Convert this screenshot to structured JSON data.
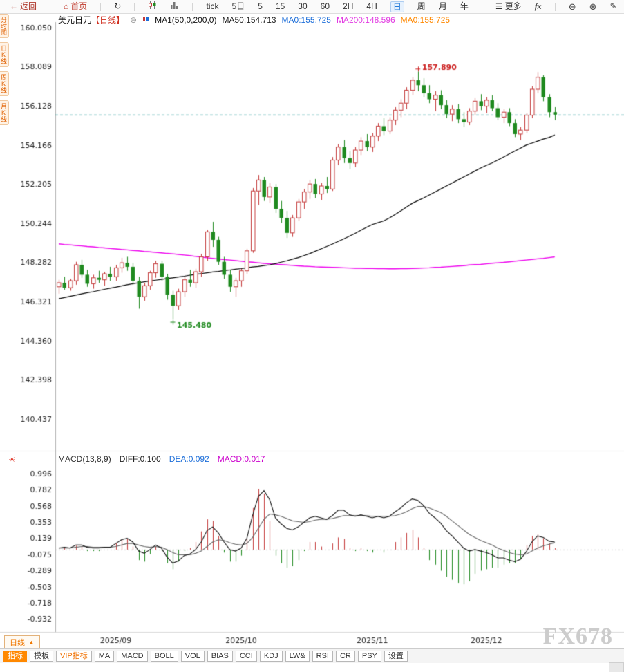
{
  "icons": {
    "back": "←",
    "home": "⌂",
    "refresh": "↻",
    "more": "☰",
    "zoom_out": "⊖",
    "zoom_in": "⊕",
    "draw": "✎",
    "collapse": "⊖",
    "indicator_settings": "☀",
    "triangle_up": "▲"
  },
  "toolbar": {
    "back_label": "返回",
    "home_label": "首页",
    "periods": [
      "tick",
      "5日",
      "5",
      "15",
      "30",
      "60",
      "2H",
      "4H",
      "日",
      "周",
      "月",
      "年"
    ],
    "active_period": "日",
    "more_label": "更多",
    "fx_label": "fx"
  },
  "left_rail": {
    "items": [
      "分时图",
      "日K线",
      "周K线",
      "月K线"
    ]
  },
  "chart_header": {
    "symbol": "美元日元",
    "period_tag": "【日线】",
    "ma_config": "MA1(50,0,200,0)",
    "ma_values": [
      {
        "label": "MA50:154.713",
        "color": "#222222"
      },
      {
        "label": "MA0:155.725",
        "color": "#1e6fd9"
      },
      {
        "label": "MA200:148.596",
        "color": "#e23ae2"
      },
      {
        "label": "MA0:155.725",
        "color": "#ff8800"
      }
    ]
  },
  "macd_header": {
    "label": "MACD(13,8,9)",
    "diff": {
      "label": "DIFF:0.100",
      "color": "#222222"
    },
    "dea": {
      "label": "DEA:0.092",
      "color": "#1e6fd9"
    },
    "macd": {
      "label": "MACD:0.017",
      "color": "#cc00cc"
    }
  },
  "bottom": {
    "period_label": "日线",
    "tabs": [
      "指标",
      "模板",
      "VIP指标",
      "MA",
      "MACD",
      "BOLL",
      "VOL",
      "BIAS",
      "CCI",
      "KDJ",
      "LW&",
      "RSI",
      "CR",
      "PSY",
      "设置"
    ],
    "active_tab": "指标"
  },
  "watermark": "FX678",
  "chart_data": [
    {
      "type": "candlestick",
      "symbol": "美元日元",
      "period": "日线",
      "y_ticks": [
        160.05,
        158.089,
        156.128,
        154.166,
        152.205,
        150.244,
        148.282,
        146.321,
        144.36,
        142.398,
        140.437
      ],
      "x_tick_labels": [
        {
          "label": "2025/09",
          "index": 10
        },
        {
          "label": "2025/10",
          "index": 32
        },
        {
          "label": "2025/11",
          "index": 55
        },
        {
          "label": "2025/12",
          "index": 75
        }
      ],
      "current_price": 155.725,
      "current_price_color": "#2f9e9e",
      "high_annotation": {
        "text": "157.890",
        "index": 63,
        "price": 157.89,
        "color": "#cc2222"
      },
      "low_annotation": {
        "text": "145.480",
        "index": 20,
        "price": 145.48,
        "color": "#1f8a1f"
      },
      "up_color": "#c43a3a",
      "down_color": "#1f8a1f",
      "ma50_color": "#000000",
      "ma200_color": "#ee00ee",
      "candles": [
        [
          147.1,
          147.45,
          146.75,
          147.3
        ],
        [
          147.3,
          147.6,
          146.95,
          147.05
        ],
        [
          147.05,
          147.5,
          146.9,
          147.4
        ],
        [
          147.4,
          148.35,
          147.2,
          148.2
        ],
        [
          148.2,
          148.45,
          147.55,
          147.7
        ],
        [
          147.7,
          147.95,
          147.1,
          147.25
        ],
        [
          147.25,
          147.7,
          147.0,
          147.55
        ],
        [
          147.55,
          147.9,
          147.3,
          147.45
        ],
        [
          147.45,
          147.85,
          147.15,
          147.75
        ],
        [
          147.75,
          148.1,
          147.4,
          147.6
        ],
        [
          147.6,
          148.2,
          147.4,
          148.05
        ],
        [
          148.05,
          148.55,
          147.8,
          148.3
        ],
        [
          148.3,
          148.6,
          147.9,
          148.1
        ],
        [
          148.1,
          148.3,
          147.2,
          147.4
        ],
        [
          147.4,
          147.6,
          146.0,
          146.6
        ],
        [
          146.6,
          147.3,
          146.4,
          147.15
        ],
        [
          147.15,
          147.9,
          146.95,
          147.8
        ],
        [
          147.8,
          148.4,
          147.55,
          148.25
        ],
        [
          148.25,
          148.4,
          147.4,
          147.6
        ],
        [
          147.6,
          147.75,
          146.45,
          146.7
        ],
        [
          146.7,
          146.9,
          145.48,
          146.15
        ],
        [
          146.15,
          147.0,
          145.95,
          146.85
        ],
        [
          146.85,
          147.6,
          146.6,
          147.45
        ],
        [
          147.45,
          147.95,
          147.1,
          147.3
        ],
        [
          147.3,
          148.0,
          147.05,
          147.85
        ],
        [
          147.85,
          148.75,
          147.6,
          148.6
        ],
        [
          148.6,
          149.95,
          148.4,
          149.85
        ],
        [
          149.85,
          150.35,
          149.1,
          149.45
        ],
        [
          149.45,
          149.6,
          148.2,
          148.35
        ],
        [
          148.35,
          148.6,
          147.5,
          147.7
        ],
        [
          147.7,
          147.95,
          146.85,
          147.1
        ],
        [
          147.1,
          147.55,
          146.6,
          147.4
        ],
        [
          147.4,
          148.0,
          147.1,
          147.9
        ],
        [
          147.9,
          149.0,
          147.75,
          148.9
        ],
        [
          148.9,
          152.05,
          148.8,
          151.9
        ],
        [
          151.9,
          152.7,
          151.2,
          152.45
        ],
        [
          152.45,
          152.6,
          151.4,
          151.6
        ],
        [
          151.6,
          152.3,
          151.3,
          152.1
        ],
        [
          152.1,
          152.25,
          150.8,
          151.0
        ],
        [
          151.0,
          151.4,
          150.3,
          150.55
        ],
        [
          150.55,
          150.9,
          149.55,
          149.8
        ],
        [
          149.8,
          150.7,
          149.6,
          150.55
        ],
        [
          150.55,
          151.5,
          150.4,
          151.35
        ],
        [
          151.35,
          152.0,
          151.0,
          151.85
        ],
        [
          151.85,
          152.45,
          151.5,
          152.25
        ],
        [
          152.25,
          152.5,
          151.55,
          151.75
        ],
        [
          151.75,
          152.3,
          151.45,
          152.15
        ],
        [
          152.15,
          152.6,
          151.8,
          152.0
        ],
        [
          152.0,
          153.6,
          151.9,
          153.45
        ],
        [
          153.45,
          154.25,
          153.2,
          154.1
        ],
        [
          154.1,
          154.45,
          153.3,
          153.55
        ],
        [
          153.55,
          153.9,
          153.0,
          153.3
        ],
        [
          153.3,
          154.1,
          153.1,
          153.95
        ],
        [
          153.95,
          154.6,
          153.7,
          154.4
        ],
        [
          154.4,
          154.75,
          153.9,
          154.1
        ],
        [
          154.1,
          154.8,
          153.85,
          154.65
        ],
        [
          154.65,
          155.3,
          154.4,
          155.15
        ],
        [
          155.15,
          155.55,
          154.7,
          154.9
        ],
        [
          154.9,
          155.6,
          154.75,
          155.45
        ],
        [
          155.45,
          156.1,
          155.2,
          155.95
        ],
        [
          155.95,
          156.5,
          155.6,
          156.3
        ],
        [
          156.3,
          157.1,
          156.0,
          156.95
        ],
        [
          156.95,
          157.6,
          156.7,
          157.45
        ],
        [
          157.45,
          157.89,
          156.9,
          157.2
        ],
        [
          157.2,
          157.55,
          156.6,
          156.8
        ],
        [
          156.8,
          157.2,
          156.3,
          156.5
        ],
        [
          156.5,
          156.9,
          155.9,
          156.7
        ],
        [
          156.7,
          156.95,
          156.0,
          156.2
        ],
        [
          156.2,
          156.45,
          155.55,
          155.75
        ],
        [
          155.75,
          156.2,
          155.4,
          156.0
        ],
        [
          156.0,
          156.25,
          155.3,
          155.5
        ],
        [
          155.5,
          155.85,
          155.1,
          155.35
        ],
        [
          155.35,
          156.05,
          155.2,
          155.9
        ],
        [
          155.9,
          156.55,
          155.7,
          156.4
        ],
        [
          156.4,
          156.75,
          155.95,
          156.15
        ],
        [
          156.15,
          156.6,
          155.8,
          156.45
        ],
        [
          156.45,
          156.7,
          155.9,
          156.05
        ],
        [
          156.05,
          156.3,
          155.45,
          155.6
        ],
        [
          155.6,
          156.0,
          155.3,
          155.85
        ],
        [
          155.85,
          156.05,
          155.15,
          155.3
        ],
        [
          155.3,
          155.5,
          154.6,
          154.75
        ],
        [
          154.75,
          155.1,
          154.45,
          154.95
        ],
        [
          154.95,
          155.8,
          154.8,
          155.7
        ],
        [
          155.7,
          157.15,
          155.55,
          157.0
        ],
        [
          157.0,
          157.86,
          156.8,
          157.6
        ],
        [
          157.6,
          157.7,
          156.4,
          156.6
        ],
        [
          156.6,
          156.75,
          155.6,
          155.85
        ],
        [
          155.85,
          156.1,
          155.45,
          155.73
        ]
      ],
      "ma50": [
        146.5,
        146.56,
        146.62,
        146.68,
        146.74,
        146.8,
        146.85,
        146.91,
        146.97,
        147.03,
        147.08,
        147.14,
        147.2,
        147.25,
        147.3,
        147.35,
        147.39,
        147.43,
        147.47,
        147.51,
        147.55,
        147.59,
        147.63,
        147.68,
        147.72,
        147.76,
        147.8,
        147.84,
        147.87,
        147.91,
        147.94,
        147.98,
        148.01,
        148.05,
        148.09,
        148.12,
        148.16,
        148.2,
        148.26,
        148.33,
        148.4,
        148.48,
        148.56,
        148.66,
        148.76,
        148.88,
        149.0,
        149.12,
        149.24,
        149.37,
        149.5,
        149.64,
        149.78,
        149.93,
        150.08,
        150.22,
        150.31,
        150.4,
        150.55,
        150.72,
        150.9,
        151.09,
        151.28,
        151.42,
        151.55,
        151.7,
        151.85,
        152.0,
        152.15,
        152.3,
        152.45,
        152.6,
        152.75,
        152.9,
        153.05,
        153.18,
        153.3,
        153.45,
        153.6,
        153.75,
        153.9,
        154.05,
        154.2,
        154.3,
        154.4,
        154.5,
        154.58,
        154.71
      ],
      "ma200": [
        149.25,
        149.22,
        149.2,
        149.17,
        149.15,
        149.12,
        149.1,
        149.07,
        149.05,
        149.02,
        149.0,
        148.97,
        148.95,
        148.92,
        148.9,
        148.87,
        148.85,
        148.82,
        148.8,
        148.77,
        148.75,
        148.72,
        148.69,
        148.66,
        148.62,
        148.59,
        148.55,
        148.52,
        148.49,
        148.46,
        148.44,
        148.41,
        148.38,
        148.35,
        148.33,
        148.3,
        148.27,
        148.25,
        148.23,
        148.21,
        148.19,
        148.17,
        148.15,
        148.13,
        148.12,
        148.1,
        148.09,
        148.08,
        148.07,
        148.06,
        148.05,
        148.04,
        148.03,
        148.03,
        148.02,
        148.02,
        148.01,
        148.01,
        148.0,
        148.0,
        148.01,
        148.01,
        148.02,
        148.03,
        148.04,
        148.05,
        148.07,
        148.08,
        148.1,
        148.12,
        148.14,
        148.16,
        148.19,
        148.21,
        148.22,
        148.25,
        148.28,
        148.3,
        148.32,
        148.35,
        148.38,
        148.41,
        148.44,
        148.47,
        148.5,
        148.52,
        148.56,
        148.6
      ]
    },
    {
      "type": "macd",
      "params": "MACD(13,8,9)",
      "diff_value": 0.1,
      "dea_value": 0.092,
      "macd_value": 0.017,
      "y_ticks": [
        0.996,
        0.782,
        0.568,
        0.353,
        0.139,
        -0.075,
        -0.289,
        -0.503,
        -0.718,
        -0.932
      ],
      "diff_color": "#111111",
      "dea_color": "#666666",
      "hist_up_color": "#c43a3a",
      "hist_down_color": "#1f8a1f",
      "zero_line_color": "#bbbbbb",
      "diff": [
        0.02,
        0.03,
        0.02,
        0.06,
        0.06,
        0.03,
        0.02,
        0.02,
        0.03,
        0.03,
        0.08,
        0.13,
        0.15,
        0.1,
        -0.02,
        -0.05,
        0.0,
        0.06,
        0.02,
        -0.1,
        -0.18,
        -0.15,
        -0.08,
        -0.06,
        0.0,
        0.1,
        0.25,
        0.3,
        0.22,
        0.1,
        0.0,
        -0.02,
        0.02,
        0.15,
        0.45,
        0.7,
        0.78,
        0.66,
        0.42,
        0.34,
        0.28,
        0.26,
        0.3,
        0.36,
        0.42,
        0.44,
        0.42,
        0.4,
        0.45,
        0.52,
        0.52,
        0.46,
        0.44,
        0.46,
        0.44,
        0.42,
        0.44,
        0.42,
        0.44,
        0.5,
        0.55,
        0.62,
        0.67,
        0.65,
        0.58,
        0.48,
        0.42,
        0.35,
        0.25,
        0.18,
        0.1,
        0.02,
        -0.02,
        0.0,
        -0.02,
        -0.04,
        -0.07,
        -0.11,
        -0.11,
        -0.14,
        -0.16,
        -0.13,
        -0.03,
        0.1,
        0.18,
        0.16,
        0.11,
        0.1
      ],
      "dea": [
        0.02,
        0.02,
        0.02,
        0.03,
        0.04,
        0.04,
        0.03,
        0.03,
        0.03,
        0.03,
        0.04,
        0.06,
        0.08,
        0.08,
        0.06,
        0.04,
        0.03,
        0.04,
        0.03,
        0.0,
        -0.04,
        -0.07,
        -0.07,
        -0.07,
        -0.05,
        -0.02,
        0.04,
        0.1,
        0.13,
        0.12,
        0.09,
        0.07,
        0.06,
        0.08,
        0.16,
        0.28,
        0.4,
        0.47,
        0.46,
        0.44,
        0.41,
        0.38,
        0.37,
        0.36,
        0.37,
        0.39,
        0.4,
        0.4,
        0.41,
        0.43,
        0.45,
        0.45,
        0.45,
        0.45,
        0.45,
        0.44,
        0.44,
        0.44,
        0.44,
        0.45,
        0.47,
        0.5,
        0.54,
        0.57,
        0.57,
        0.55,
        0.52,
        0.49,
        0.44,
        0.38,
        0.32,
        0.26,
        0.2,
        0.16,
        0.12,
        0.09,
        0.06,
        0.02,
        -0.01,
        -0.04,
        -0.06,
        -0.07,
        -0.06,
        -0.02,
        0.02,
        0.05,
        0.07,
        0.092
      ],
      "hist": [
        0.0,
        0.02,
        0.0,
        0.05,
        0.04,
        -0.02,
        -0.02,
        -0.02,
        0.0,
        0.0,
        0.08,
        0.14,
        0.14,
        0.04,
        -0.14,
        -0.16,
        -0.06,
        0.04,
        -0.02,
        -0.18,
        -0.26,
        -0.16,
        -0.02,
        0.02,
        0.1,
        0.24,
        0.4,
        0.38,
        0.18,
        -0.04,
        -0.16,
        -0.16,
        -0.08,
        0.14,
        0.55,
        0.8,
        0.74,
        0.38,
        -0.08,
        -0.18,
        -0.24,
        -0.22,
        -0.14,
        -0.02,
        0.1,
        0.1,
        0.04,
        0.0,
        0.08,
        0.16,
        0.14,
        0.02,
        -0.02,
        0.02,
        -0.02,
        -0.04,
        0.0,
        -0.04,
        0.0,
        0.1,
        0.16,
        0.22,
        0.26,
        0.16,
        0.02,
        -0.14,
        -0.2,
        -0.28,
        -0.36,
        -0.4,
        -0.44,
        -0.46,
        -0.42,
        -0.32,
        -0.28,
        -0.26,
        -0.24,
        -0.24,
        -0.2,
        -0.18,
        -0.18,
        -0.12,
        0.06,
        0.18,
        0.2,
        0.15,
        0.08,
        0.017
      ]
    }
  ]
}
